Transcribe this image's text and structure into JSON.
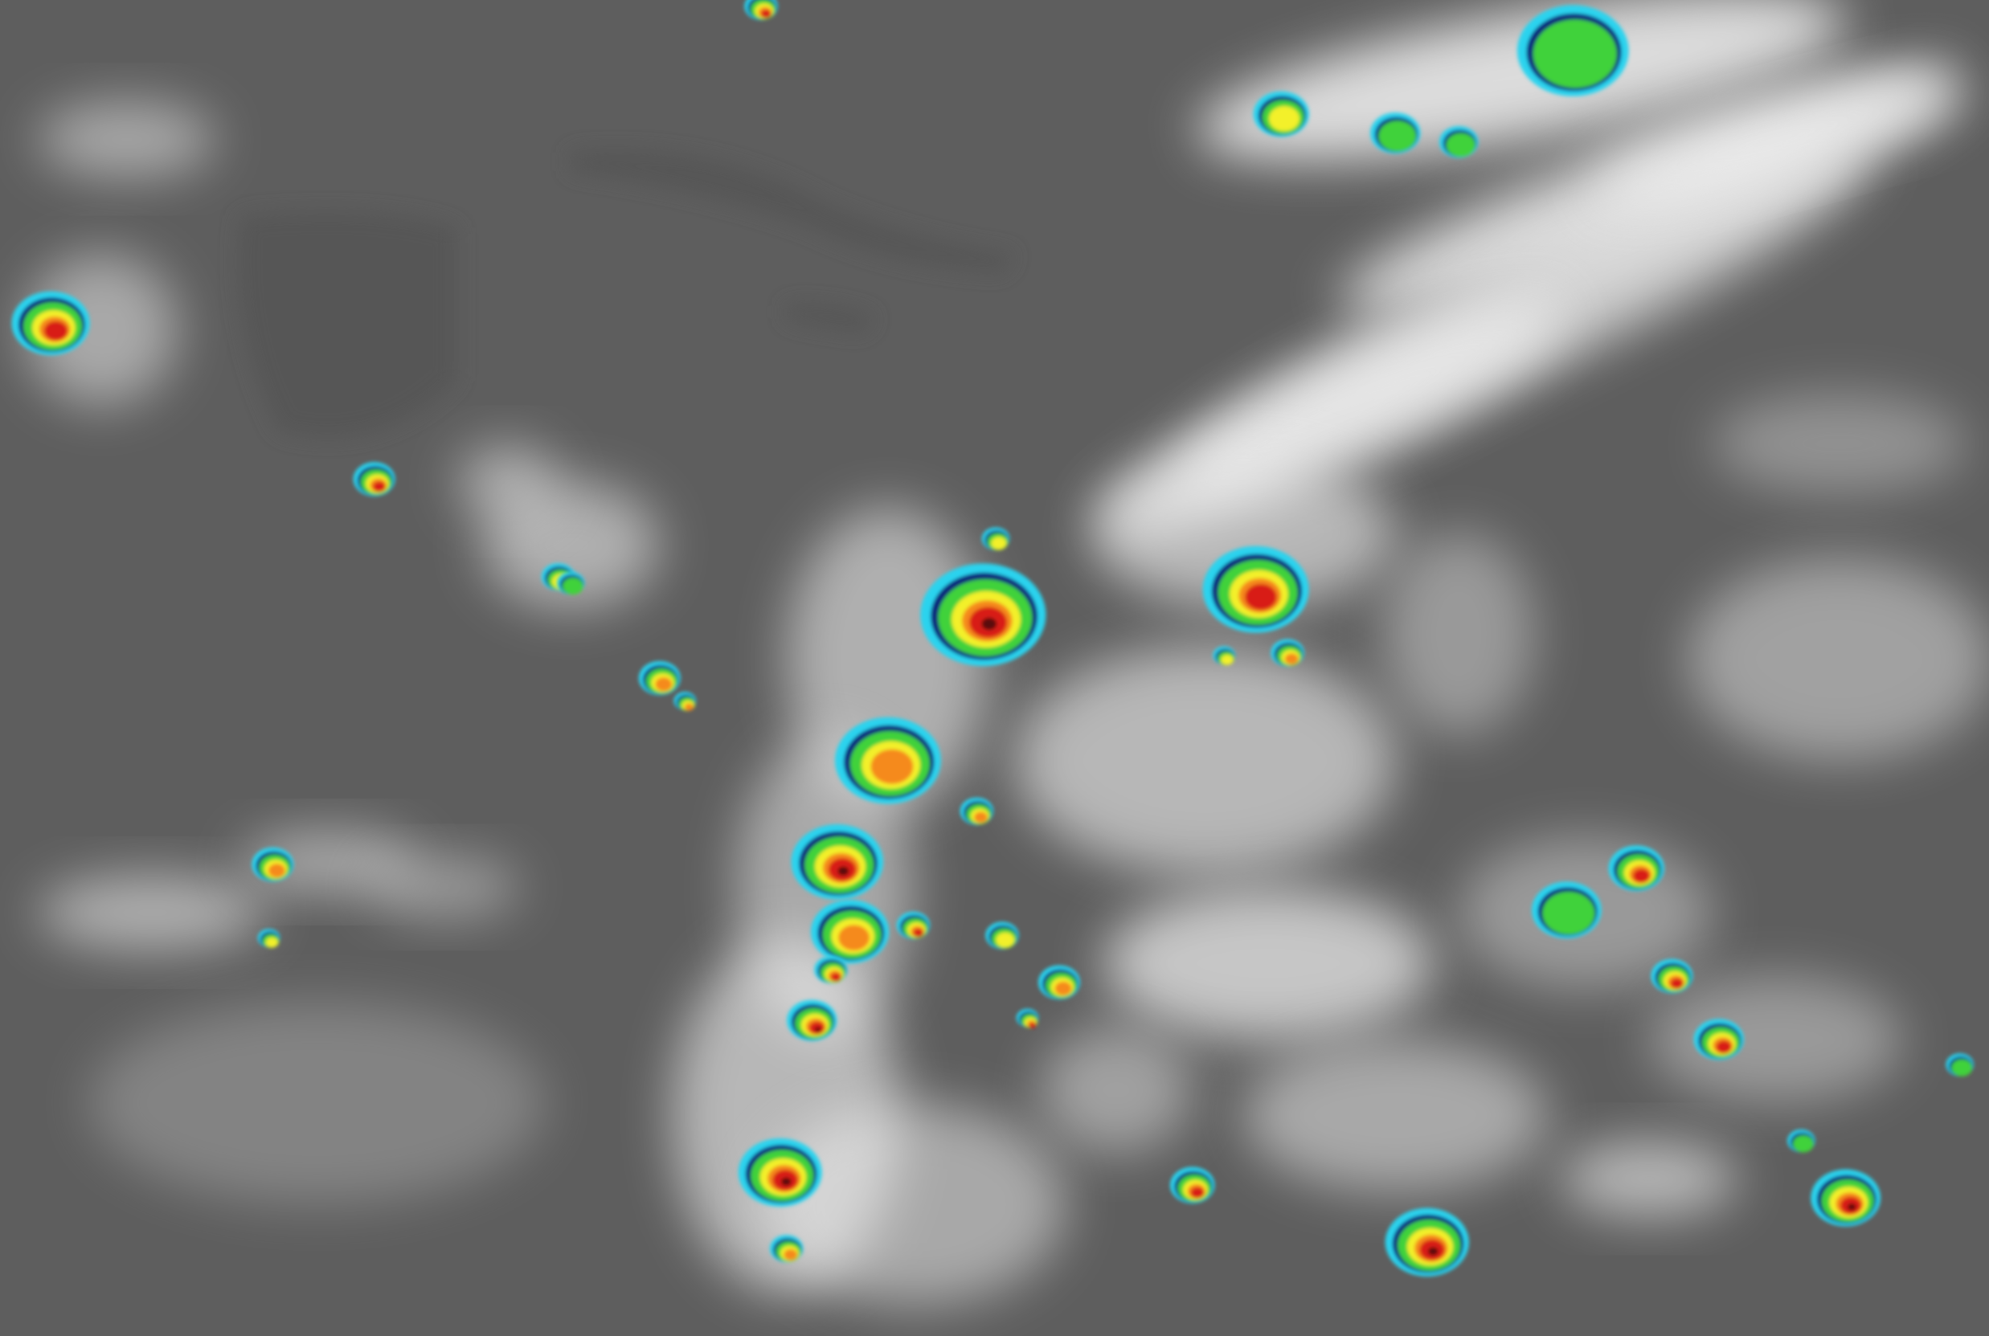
{
  "image": {
    "palette": {
      "background": "#5e5e5e",
      "land": "#555555",
      "cloud_high": "#f2f2f2",
      "cloud_mid": "#bdbdbd",
      "cyan": "#29d3ee",
      "blue": "#1a4fc4",
      "navy": "#0a1f7a",
      "green": "#3fd23a",
      "yellow": "#f3f02a",
      "orange": "#f58a1e",
      "red": "#d81a12",
      "darkred": "#5a0a08"
    }
  }
}
